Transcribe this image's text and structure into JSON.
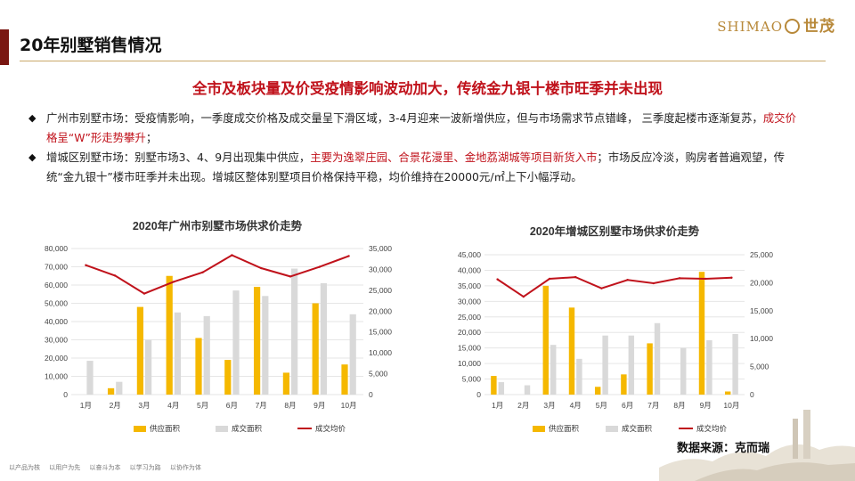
{
  "header": {
    "title": "20年别墅销售情况",
    "logo_text": "SHIMAO",
    "logo_cn": "世茂"
  },
  "headline": "全市及板块量及价受疫情影响波动加大，传统金九银十楼市旺季并未出现",
  "bullets": [
    {
      "label": "广州市别墅市场：",
      "text1": "受疫情影响，一季度成交价格及成交量呈下滑区域，3-4月迎来一波新增供应，但与市场需求节点错峰， 三季度起楼市逐渐复苏，",
      "highlight": "成交价格呈“W”形走势攀升",
      "text2": "；"
    },
    {
      "label": "增城区别墅市场：",
      "text1": "别墅市场3、4、9月出现集中供应，",
      "highlight": "主要为逸翠庄园、合景花漫里、金地荔湖城等项目新货入市",
      "text2": "；市场反应冷淡，购房者普遍观望，传统“金九银十”楼市旺季并未出现。增城区整体别墅项目价格保持平稳，均价维持在20000元/㎡上下小幅浮动。"
    }
  ],
  "source": "数据来源：克而瑞",
  "slogan": "以产品为核 以用户为先 以奋斗为本 以学习为路 以协作为体",
  "colors": {
    "supply": "#f5b800",
    "deal": "#d9d9d9",
    "price": "#c0121b",
    "accent": "#7a1712"
  },
  "chart_data": [
    {
      "type": "bar",
      "title": "2020年广州市别墅市场供求价走势",
      "categories": [
        "1月",
        "2月",
        "3月",
        "4月",
        "5月",
        "6月",
        "7月",
        "8月",
        "9月",
        "10月"
      ],
      "ylim": [
        0,
        80000
      ],
      "y2lim": [
        0,
        35000
      ],
      "yticks": [
        "0",
        "10,000",
        "20,000",
        "30,000",
        "40,000",
        "50,000",
        "60,000",
        "70,000",
        "80,000"
      ],
      "y2ticks": [
        "0",
        "5,000",
        "10,000",
        "15,000",
        "20,000",
        "25,000",
        "30,000",
        "35,000"
      ],
      "series": [
        {
          "name": "供应面积",
          "type": "bar",
          "axis": "left",
          "values": [
            0,
            3500,
            48000,
            65000,
            31000,
            19000,
            59000,
            12000,
            50000,
            16500
          ]
        },
        {
          "name": "成交面积",
          "type": "bar",
          "axis": "left",
          "values": [
            18500,
            7000,
            30000,
            45000,
            43000,
            57000,
            54000,
            69000,
            61000,
            44000
          ]
        },
        {
          "name": "成交均价",
          "type": "line",
          "axis": "right",
          "values": [
            31000,
            28500,
            24200,
            27000,
            29300,
            33400,
            30300,
            28300,
            30600,
            33200
          ]
        }
      ],
      "legend": "bottom"
    },
    {
      "type": "bar",
      "title": "2020年增城区别墅市场供求价走势",
      "categories": [
        "1月",
        "2月",
        "3月",
        "4月",
        "5月",
        "6月",
        "7月",
        "8月",
        "9月",
        "10月"
      ],
      "ylim": [
        0,
        45000
      ],
      "y2lim": [
        0,
        25000
      ],
      "yticks": [
        "0",
        "5,000",
        "10,000",
        "15,000",
        "20,000",
        "25,000",
        "30,000",
        "35,000",
        "40,000",
        "45,000"
      ],
      "y2ticks": [
        "0",
        "5,000",
        "10,000",
        "15,000",
        "20,000",
        "25,000"
      ],
      "series": [
        {
          "name": "供应面积",
          "type": "bar",
          "axis": "left",
          "values": [
            6000,
            0,
            35000,
            28000,
            2500,
            6500,
            16500,
            0,
            39500,
            1000
          ]
        },
        {
          "name": "成交面积",
          "type": "bar",
          "axis": "left",
          "values": [
            4000,
            3000,
            16000,
            11500,
            19000,
            19000,
            23000,
            15000,
            17500,
            19500
          ]
        },
        {
          "name": "成交均价",
          "type": "line",
          "axis": "right",
          "values": [
            20600,
            17500,
            20700,
            21000,
            19000,
            20500,
            19900,
            20800,
            20700,
            20900
          ]
        }
      ],
      "legend": "bottom"
    }
  ]
}
